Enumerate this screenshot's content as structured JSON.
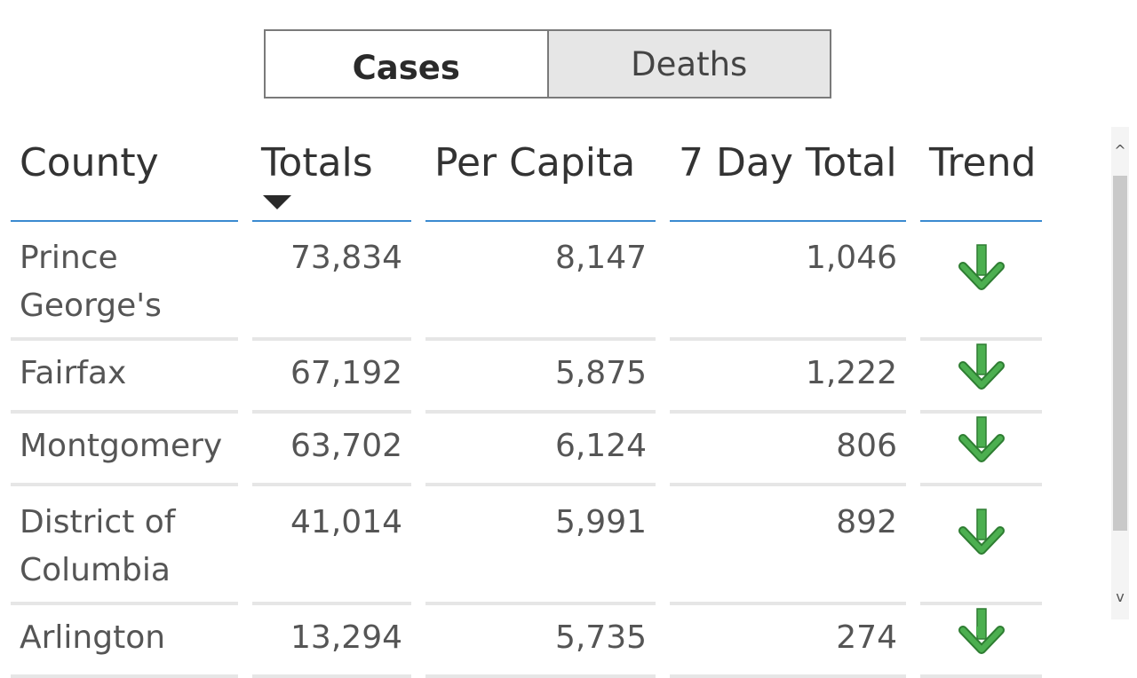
{
  "toggle": {
    "cases_label": "Cases",
    "deaths_label": "Deaths",
    "active": "Cases"
  },
  "table": {
    "headers": {
      "county": "County",
      "totals": "Totals",
      "per_capita": "Per Capita",
      "seven_day": "7 Day Total",
      "trend": "Trend"
    },
    "sort_column": "Totals",
    "sort_direction": "descending",
    "rows": [
      {
        "county": "Prince George's",
        "totals": "73,834",
        "per_capita": "8,147",
        "seven_day": "1,046",
        "trend": "down-arrow-icon"
      },
      {
        "county": "Fairfax",
        "totals": "67,192",
        "per_capita": "5,875",
        "seven_day": "1,222",
        "trend": "down-arrow-icon"
      },
      {
        "county": "Montgomery",
        "totals": "63,702",
        "per_capita": "6,124",
        "seven_day": "806",
        "trend": "down-arrow-icon"
      },
      {
        "county": "District of Columbia",
        "totals": "41,014",
        "per_capita": "5,991",
        "seven_day": "892",
        "trend": "down-arrow-icon"
      },
      {
        "county": "Arlington",
        "totals": "13,294",
        "per_capita": "5,735",
        "seven_day": "274",
        "trend": "down-arrow-icon"
      }
    ]
  },
  "scrollbar": {
    "up_glyph": "^",
    "down_glyph": "v"
  },
  "colors": {
    "trend_down": "#4caf50",
    "header_rule": "#3a8ad0",
    "row_rule": "#e6e6e6",
    "toggle_inactive_bg": "#e6e6e6"
  }
}
